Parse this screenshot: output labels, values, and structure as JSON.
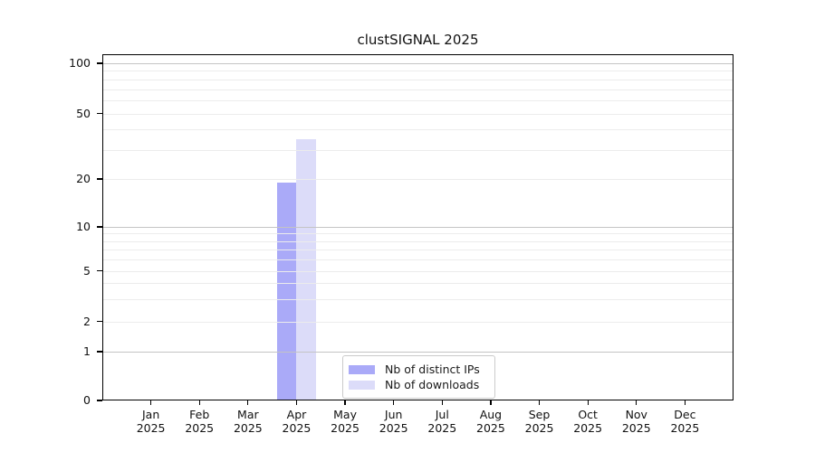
{
  "title": "clustSIGNAL 2025",
  "chart_data": {
    "type": "bar",
    "title": "clustSIGNAL 2025",
    "categories": [
      "Jan",
      "Feb",
      "Mar",
      "Apr",
      "May",
      "Jun",
      "Jul",
      "Aug",
      "Sep",
      "Oct",
      "Nov",
      "Dec"
    ],
    "category_year": "2025",
    "series": [
      {
        "name": "Nb of distinct IPs",
        "color": "#aaaaf8",
        "values": [
          0,
          0,
          0,
          19,
          0,
          0,
          0,
          0,
          0,
          0,
          0,
          0
        ]
      },
      {
        "name": "Nb of downloads",
        "color": "#dcdcf9",
        "values": [
          0,
          0,
          0,
          35,
          0,
          0,
          0,
          0,
          0,
          0,
          0,
          0
        ]
      }
    ],
    "y_axis": {
      "scale": "log-like",
      "tick_values": [
        0,
        1,
        2,
        5,
        10,
        20,
        50,
        100
      ],
      "tick_labels": [
        "0",
        "1",
        "2",
        "5",
        "10",
        "20",
        "50",
        "100"
      ],
      "major_gridline_values": [
        1,
        10,
        100
      ],
      "minor_gridline_values": [
        3,
        4,
        6,
        7,
        8,
        9,
        30,
        40,
        60,
        70,
        80,
        90
      ],
      "ylim": [
        0,
        100
      ]
    },
    "grid": true,
    "legend": {
      "position": "inside-bottom-center",
      "entries": [
        "Nb of distinct IPs",
        "Nb of downloads"
      ]
    }
  },
  "colors": {
    "bar_distinct_ips": "#aaaaf8",
    "bar_downloads": "#dcdcf9",
    "major_grid": "#c4c4c4",
    "minor_grid": "#ececec",
    "axis": "#000000",
    "text": "#1a1a1a",
    "legend_border": "#cbcbcb",
    "background": "#ffffff"
  }
}
